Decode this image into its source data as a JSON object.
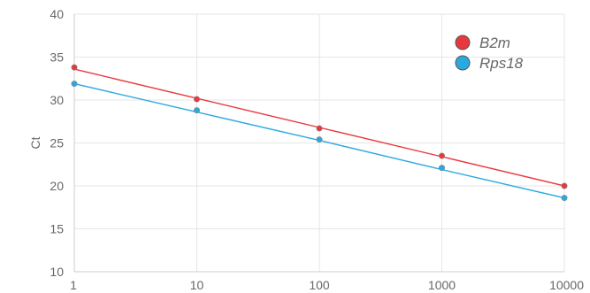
{
  "chart_data": {
    "type": "scatter",
    "x": [
      1,
      10,
      100,
      1000,
      10000
    ],
    "x_scale": "log",
    "xlim": [
      1,
      10000
    ],
    "ylim": [
      10,
      40
    ],
    "x_ticks": [
      1,
      10,
      100,
      1000,
      10000
    ],
    "y_ticks": [
      10,
      15,
      20,
      25,
      30,
      35,
      40
    ],
    "xlabel": "",
    "ylabel": "Ct",
    "title": "",
    "grid": true,
    "legend_position": "top-right",
    "trendlines": true,
    "series": [
      {
        "name": "B2m",
        "color": "#e8383d",
        "values": [
          33.8,
          30.1,
          26.7,
          23.5,
          20.0
        ],
        "trend": [
          33.6,
          30.2,
          26.8,
          23.4,
          20.0
        ]
      },
      {
        "name": "Rps18",
        "color": "#2aa9de",
        "values": [
          31.9,
          28.8,
          25.4,
          22.1,
          18.6
        ],
        "trend": [
          31.9,
          28.6,
          25.3,
          21.9,
          18.6
        ]
      }
    ]
  }
}
